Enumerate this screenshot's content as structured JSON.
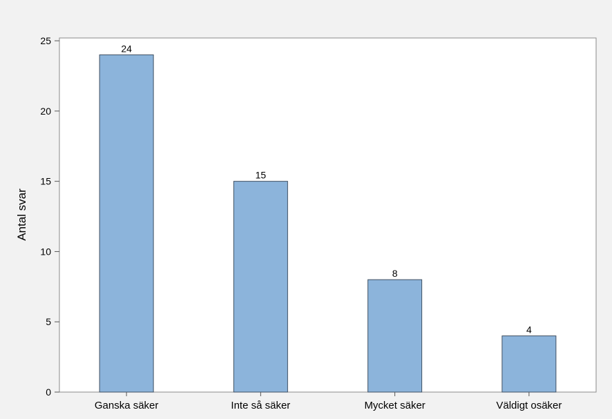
{
  "chart_data": {
    "type": "bar",
    "title": "",
    "xlabel": "",
    "ylabel": "Antal svar",
    "categories": [
      "Ganska säker",
      "Inte så säker",
      "Mycket säker",
      "Väldigt osäker"
    ],
    "values": [
      24,
      15,
      8,
      4
    ],
    "value_labels": [
      "24",
      "15",
      "8",
      "4"
    ],
    "yticks": [
      0,
      5,
      10,
      15,
      20,
      25
    ],
    "ytick_labels": [
      "0",
      "5",
      "10",
      "15",
      "20",
      "25"
    ],
    "ylim": [
      0,
      25.2
    ],
    "grid": false,
    "bar_color": "#8cb4db",
    "bar_edge_color": "#3f4f61",
    "plot_background": "#ffffff",
    "figure_background": "#f2f2f2"
  }
}
